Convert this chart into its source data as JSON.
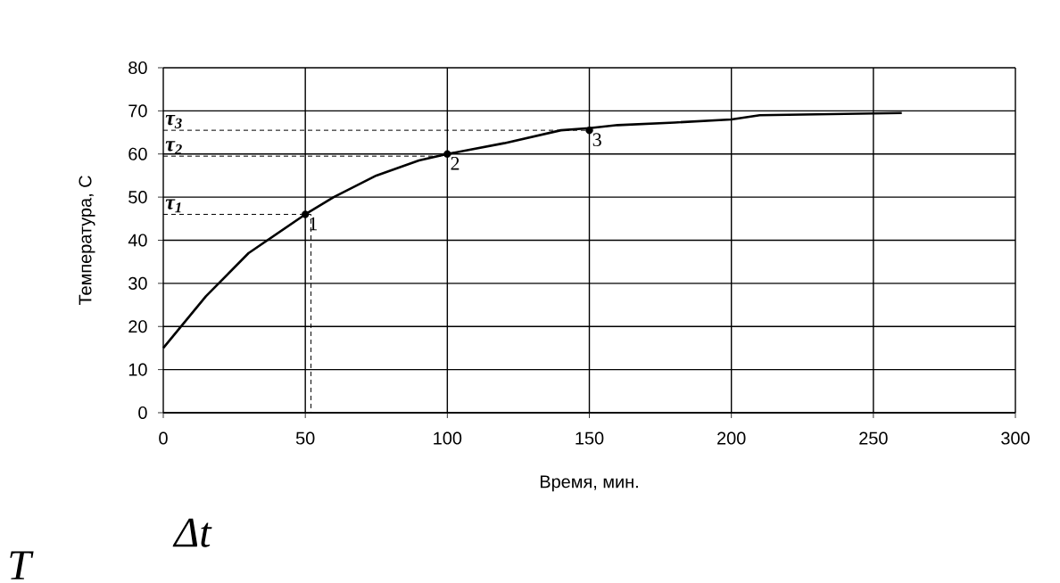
{
  "chart_data": {
    "type": "line",
    "xlabel": "Время, мин.",
    "ylabel": "Температура, С",
    "xlim": [
      0,
      300
    ],
    "ylim": [
      0,
      80
    ],
    "xticks": [
      0,
      50,
      100,
      150,
      200,
      250,
      300
    ],
    "yticks": [
      0,
      10,
      20,
      30,
      40,
      50,
      60,
      70,
      80
    ],
    "grid": true,
    "legend": false,
    "series": [
      {
        "color": "#000000",
        "marker": "none",
        "line_style": "solid",
        "x": [
          0,
          15,
          30,
          50,
          60,
          75,
          90,
          100,
          120,
          140,
          150,
          160,
          180,
          200,
          210,
          240,
          260
        ],
        "values": [
          15,
          27,
          37,
          46,
          50,
          55,
          58.5,
          60,
          62.5,
          65.5,
          66,
          66.7,
          67.3,
          68,
          69,
          69.3,
          69.5
        ]
      },
      {
        "color": "#000000",
        "marker": "none",
        "line_style": "dashed",
        "x": [
          0,
          52,
          52
        ],
        "values": [
          46,
          46,
          0
        ]
      },
      {
        "color": "#000000",
        "marker": "none",
        "line_style": "dashed",
        "x": [
          0,
          100
        ],
        "values": [
          59.5,
          59.5
        ]
      },
      {
        "color": "#000000",
        "marker": "none",
        "line_style": "dashed",
        "x": [
          0,
          150
        ],
        "values": [
          65.5,
          65.5
        ]
      },
      {
        "type": "scatter",
        "color": "#000000",
        "marker": "circle",
        "x": [
          50,
          100,
          150
        ],
        "values": [
          46,
          60,
          65.5
        ]
      }
    ],
    "annotations": [
      {
        "text": "1",
        "x": 50,
        "y": 46
      },
      {
        "text": "2",
        "x": 100,
        "y": 60
      },
      {
        "text": "3",
        "x": 150,
        "y": 65.5
      },
      {
        "text": "τ$_{1}$",
        "x": 0,
        "y": 46
      },
      {
        "text": "τ$_{2}$",
        "x": 0,
        "y": 59.5
      },
      {
        "text": "τ$_{3}$",
        "x": 0,
        "y": 65.5
      },
      "T",
      "Δt"
    ]
  }
}
